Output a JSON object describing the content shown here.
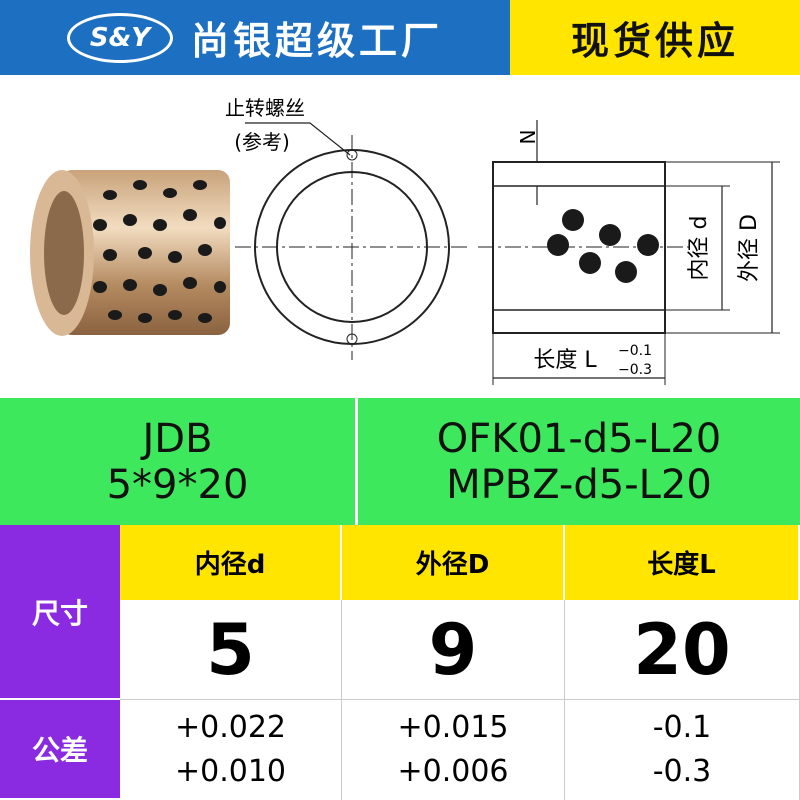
{
  "header": {
    "brand_logo": "S&Y",
    "title": "尚银超级工厂",
    "badge": "现货供应"
  },
  "drawing": {
    "screw_label": "止转螺丝",
    "screw_note": "(参考)",
    "n_label": "N",
    "inner_label": "内径 d",
    "outer_label": "外径 D",
    "length_label": "长度 L",
    "length_tol_upper": "−0.1",
    "length_tol_lower": "−0.3"
  },
  "models": {
    "left": [
      "JDB",
      "5*9*20"
    ],
    "right": [
      "OFK01-d5-L20",
      "MPBZ-d5-L20"
    ]
  },
  "table": {
    "row_labels": [
      "尺寸",
      "公差"
    ],
    "columns": [
      "内径d",
      "外径D",
      "长度L"
    ],
    "sizes": [
      5,
      9,
      20
    ],
    "tolerances": [
      [
        "+0.022",
        "+0.010"
      ],
      [
        "+0.015",
        "+0.006"
      ],
      [
        "-0.1",
        "-0.3"
      ]
    ]
  }
}
